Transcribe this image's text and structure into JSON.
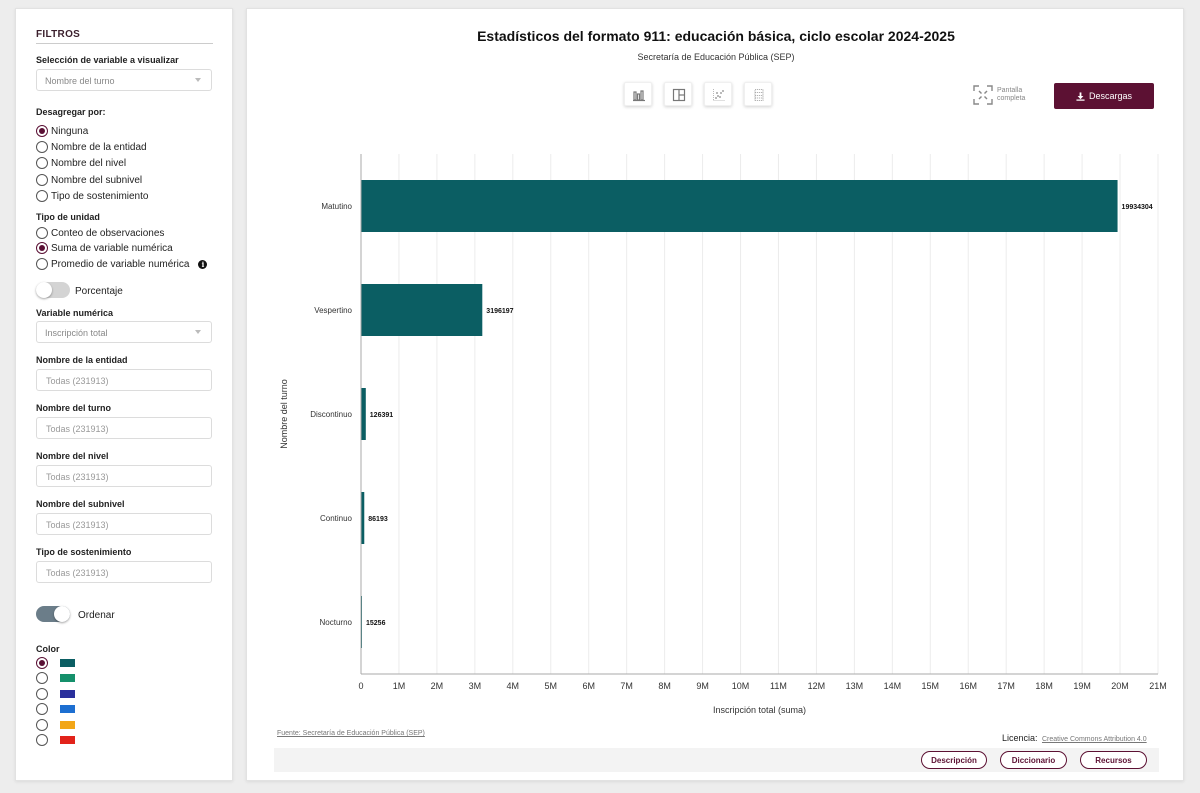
{
  "filters": {
    "title": "FILTROS",
    "variable_label": "Selección de variable a visualizar",
    "variable_value": "Nombre del turno",
    "disaggregate_label": "Desagregar por:",
    "disaggregate_options": [
      "Ninguna",
      "Nombre de la entidad",
      "Nombre del nivel",
      "Nombre del subnivel",
      "Tipo de sostenimiento"
    ],
    "unit_label": "Tipo de unidad",
    "unit_options": [
      "Conteo de observaciones",
      "Suma de variable numérica",
      "Promedio de variable numérica"
    ],
    "percentage_label": "Porcentaje",
    "numeric_label": "Variable numérica",
    "numeric_value": "Inscripción total",
    "fields": [
      {
        "label": "Nombre de la entidad",
        "placeholder": "Todas (231913)"
      },
      {
        "label": "Nombre del turno",
        "placeholder": "Todas (231913)"
      },
      {
        "label": "Nombre del nivel",
        "placeholder": "Todas (231913)"
      },
      {
        "label": "Nombre del subnivel",
        "placeholder": "Todas (231913)"
      },
      {
        "label": "Tipo de sostenimiento",
        "placeholder": "Todas (231913)"
      }
    ],
    "order_label": "Ordenar",
    "color_label": "Color",
    "colors": [
      "#0b5e63",
      "#15906b",
      "#2a2f9c",
      "#1d6fd1",
      "#f2a618",
      "#e2231a"
    ]
  },
  "toolbar": {
    "fullscreen_line1": "Pantalla",
    "fullscreen_line2": "completa",
    "download_label": "Descargas"
  },
  "chart_data": {
    "type": "bar",
    "orientation": "horizontal",
    "title": "Estadísticos del formato 911: educación básica, ciclo escolar 2024-2025",
    "subtitle": "Secretaría de Educación Pública (SEP)",
    "xlabel": "Inscripción total (suma)",
    "ylabel": "Nombre del turno",
    "categories": [
      "Matutino",
      "Vespertino",
      "Discontinuo",
      "Continuo",
      "Nocturno"
    ],
    "values": [
      19934304,
      3196197,
      126391,
      86193,
      15256
    ],
    "xlim": [
      0,
      21000000
    ],
    "xticks": [
      "0",
      "1M",
      "2M",
      "3M",
      "4M",
      "5M",
      "6M",
      "7M",
      "8M",
      "9M",
      "10M",
      "11M",
      "12M",
      "13M",
      "14M",
      "15M",
      "16M",
      "17M",
      "18M",
      "19M",
      "20M",
      "21M"
    ],
    "bar_color": "#0b5e63",
    "grid": true
  },
  "footer": {
    "source": "Fuente: Secretaría de Educación Pública (SEP)",
    "license_label": "Licencia:",
    "license_link": "Creative Commons Attribution 4.0",
    "buttons": [
      "Descripción",
      "Diccionario",
      "Recursos"
    ]
  }
}
